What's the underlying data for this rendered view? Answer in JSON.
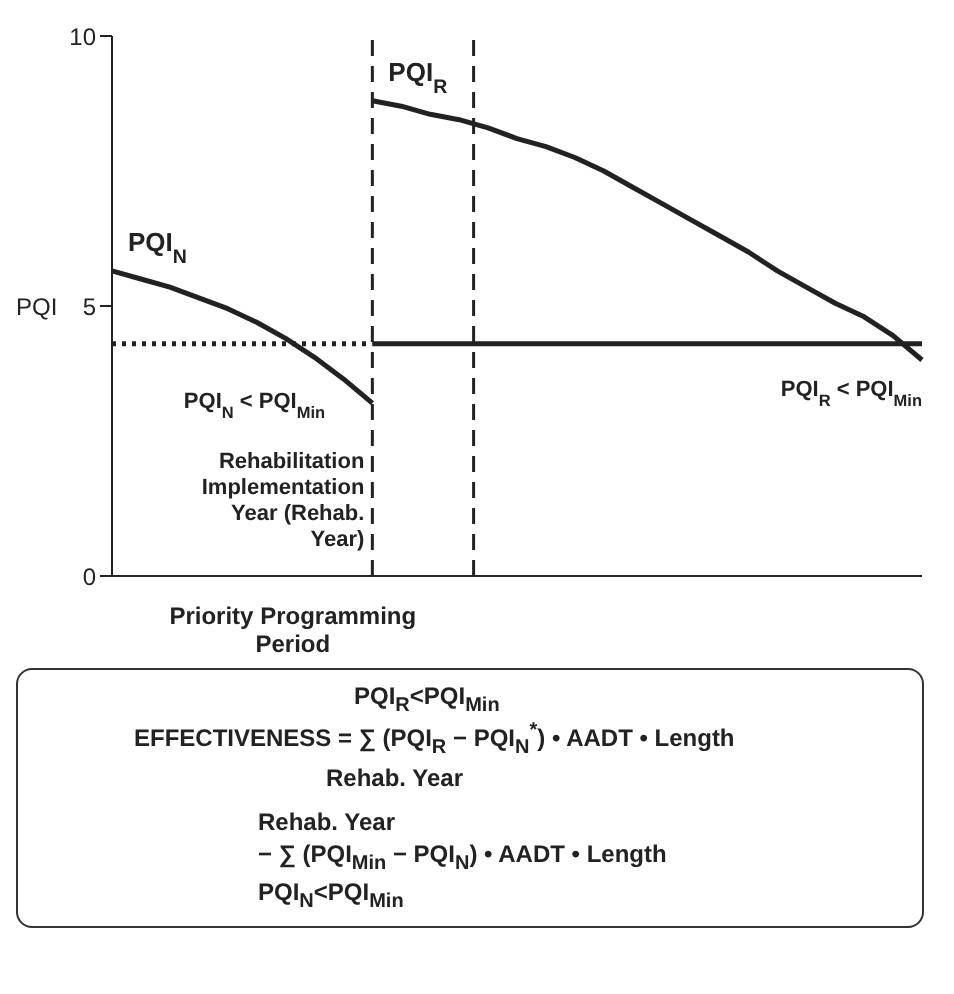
{
  "chart_data": {
    "type": "line",
    "ylabel": "PQI",
    "ylim": [
      0,
      10
    ],
    "yticks": [
      0,
      5,
      10
    ],
    "tick_labels": "y",
    "marker": "none",
    "categories": [
      null,
      null,
      null,
      null,
      null,
      null,
      null,
      null,
      null,
      null,
      null,
      null,
      null,
      null,
      null,
      null,
      null,
      null,
      null,
      null,
      null,
      null,
      null,
      null,
      null,
      null,
      null,
      null,
      null
    ],
    "series": [
      {
        "name": "PQI$_{N}$",
        "color": "#222222",
        "line_style": "solid",
        "values": [
          5.65,
          5.5,
          5.35,
          5.15,
          4.95,
          4.7,
          4.4,
          4.05,
          3.65,
          3.2,
          null,
          null,
          null,
          null,
          null,
          null,
          null,
          null,
          null,
          null,
          null,
          null,
          null,
          null,
          null,
          null,
          null,
          null,
          null
        ]
      },
      {
        "name": "PQI$_{R}$",
        "color": "#222222",
        "line_style": "solid",
        "values": [
          null,
          null,
          null,
          null,
          null,
          null,
          null,
          null,
          null,
          8.8,
          8.7,
          8.55,
          8.45,
          8.3,
          8.1,
          7.95,
          7.75,
          7.5,
          7.2,
          6.9,
          6.6,
          6.3,
          6.0,
          5.65,
          5.35,
          5.05,
          4.8,
          4.45,
          4.0
        ]
      },
      {
        "color": "#222222",
        "line_style": "dotted",
        "values": [
          4.3,
          4.3,
          4.3,
          4.3,
          4.3,
          4.3,
          4.3,
          4.3,
          4.3,
          4.3,
          null,
          null,
          null,
          null,
          null,
          null,
          null,
          null,
          null,
          null,
          null,
          null,
          null,
          null,
          null,
          null,
          null,
          null,
          null
        ]
      },
      {
        "color": "#222222",
        "line_style": "solid",
        "values": [
          null,
          null,
          null,
          null,
          null,
          null,
          null,
          null,
          null,
          4.3,
          4.3,
          4.3,
          4.3,
          4.3,
          4.3,
          4.3,
          4.3,
          4.3,
          4.3,
          4.3,
          4.3,
          4.3,
          4.3,
          4.3,
          4.3,
          4.3,
          4.3,
          4.3,
          4.3
        ]
      }
    ],
    "annotations": [
      "PQI$_{N}$ < PQI$_{Min}$",
      "PQI$_{R}$ < PQI$_{Min}$",
      "Rehabilitation Implementation Year (Rehab. Year)",
      "Priority Programming Period",
      "PQI$_{R}$<PQI$_{Min}$",
      "EFFECTIVENESS = ∑ (PQI$_{R}$ − PQI$_{N}$$^{*}$) • AADT • Length",
      "Rehab. Year",
      "Rehab. Year",
      "− ∑ (PQI$_{Min}$ − PQI$_{N}$) • AADT • Length",
      "PQI$_{N}$<PQI$_{Min}$"
    ]
  }
}
